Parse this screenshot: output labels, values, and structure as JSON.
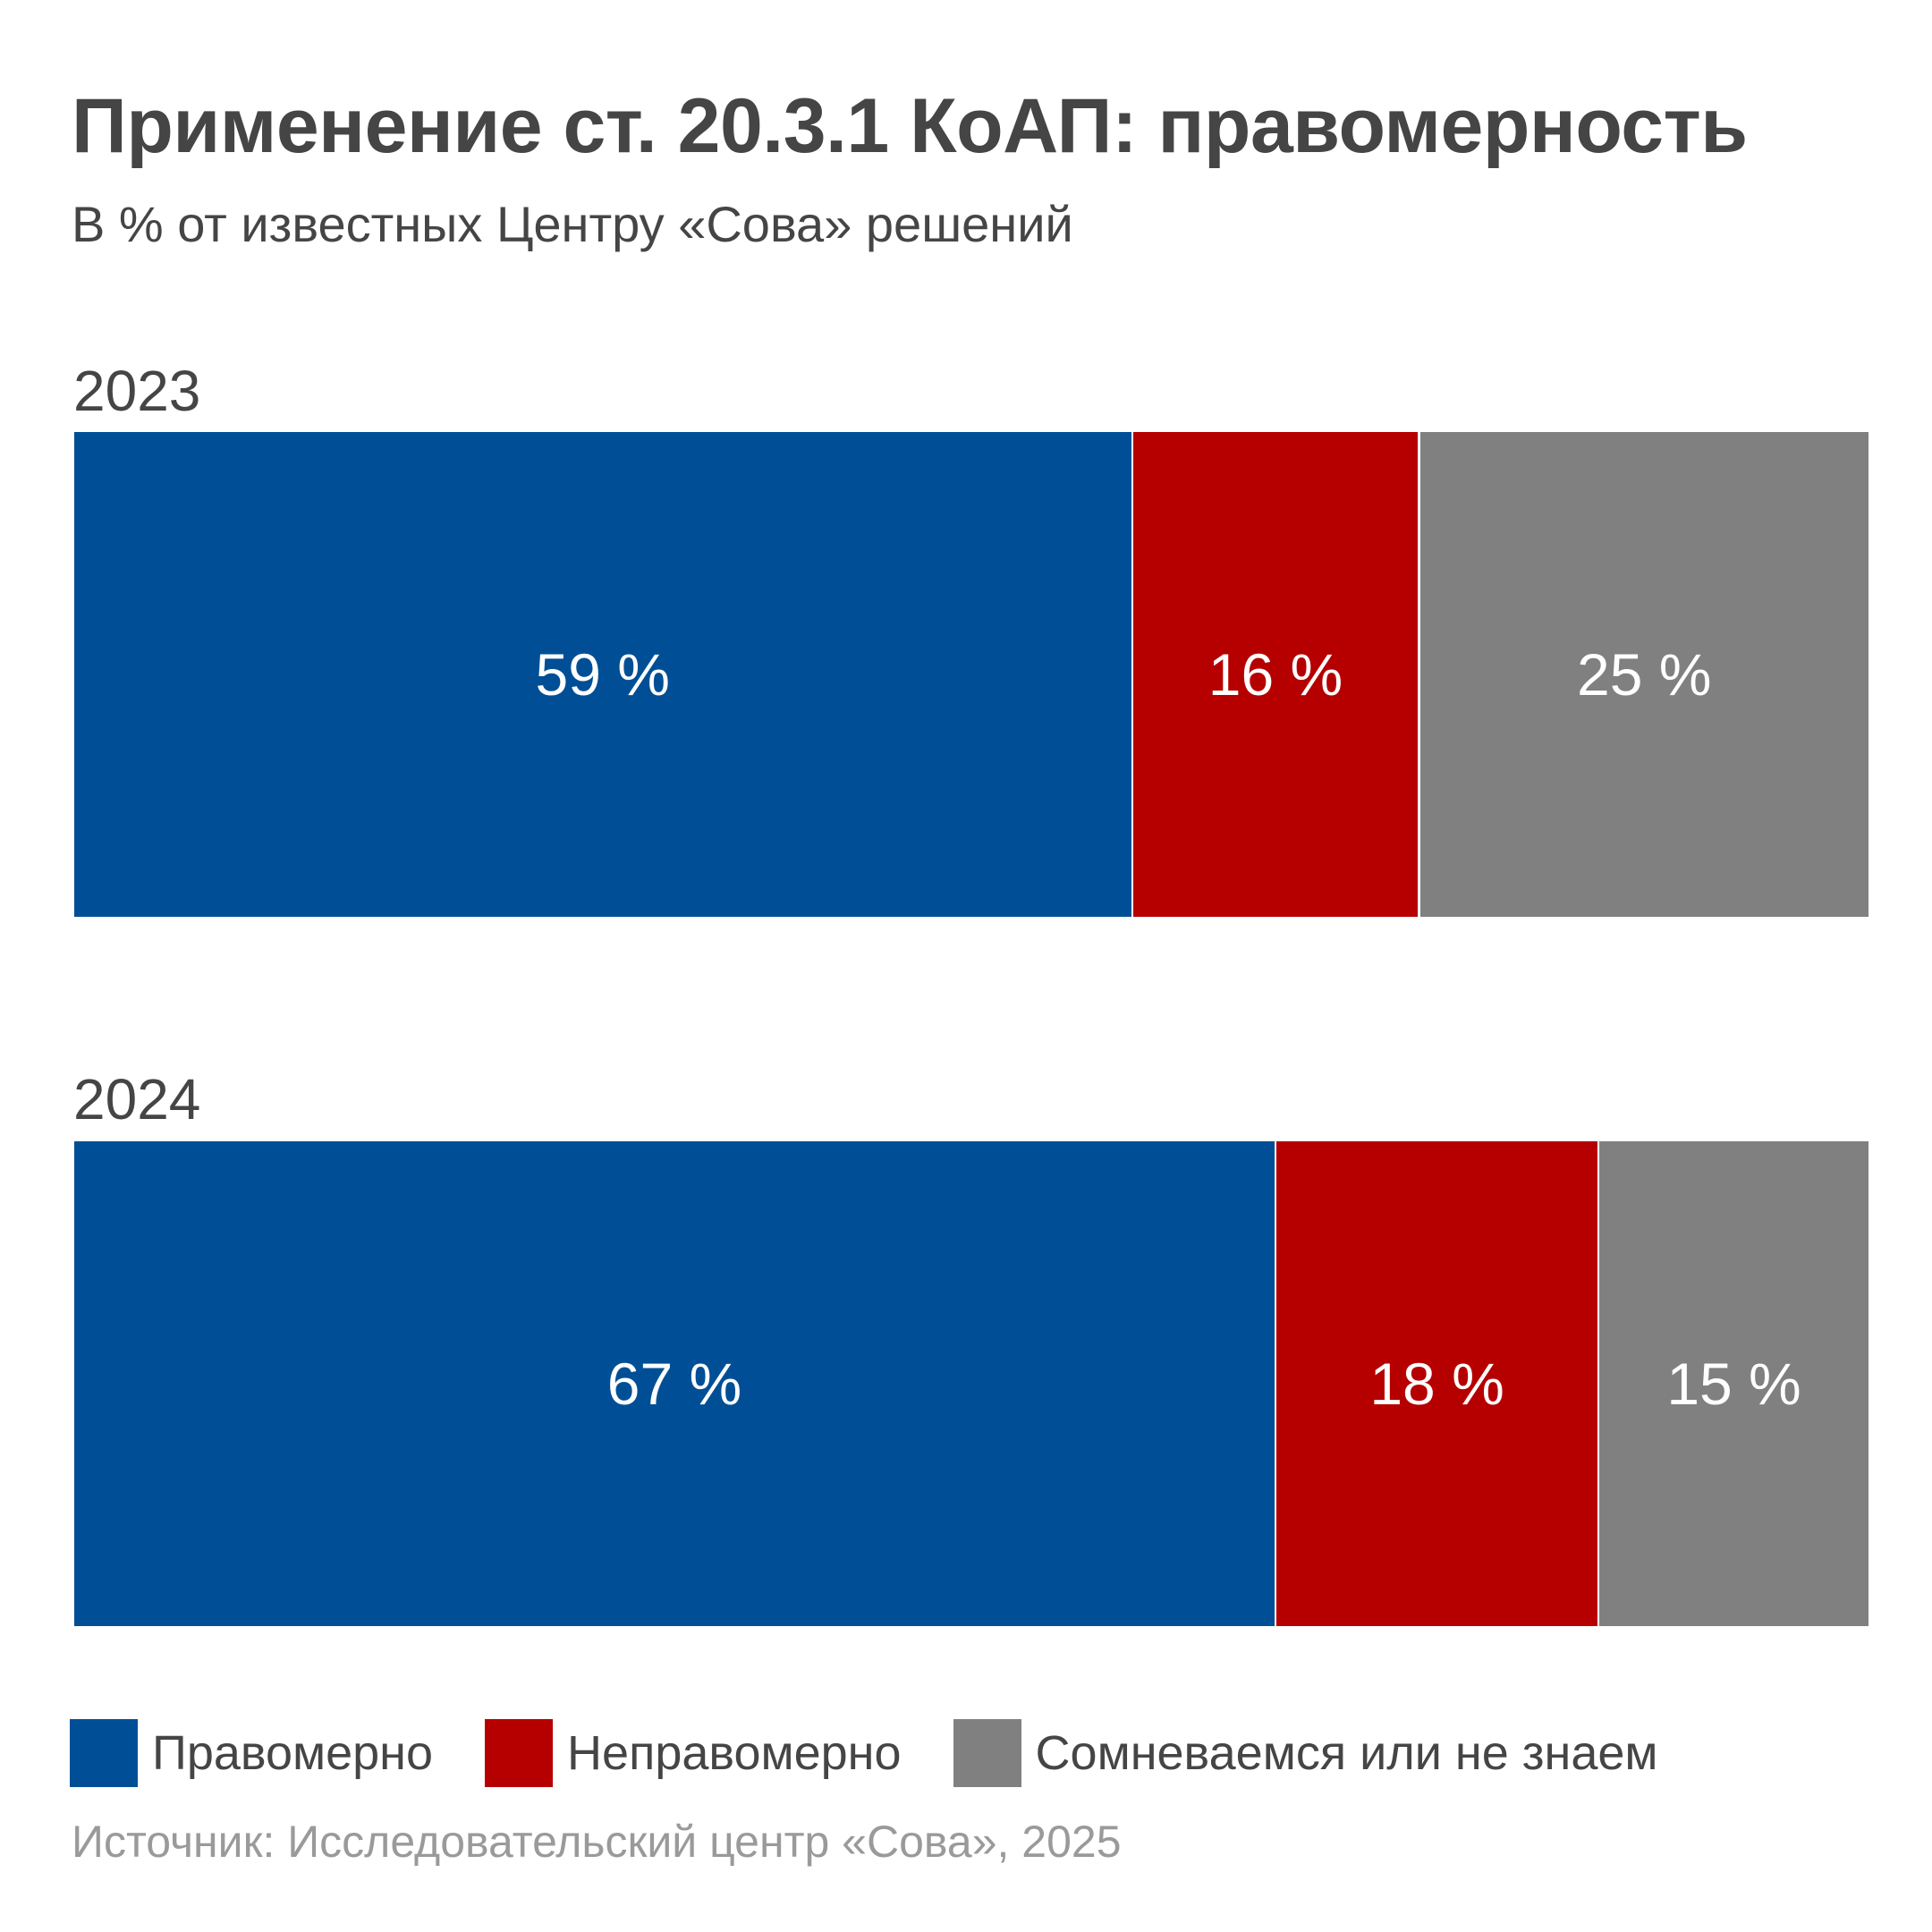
{
  "chart_data": {
    "type": "bar",
    "orientation": "horizontal-stacked",
    "title": "Применение ст. 20.3.1 КоАП: правомерность",
    "subtitle": "В % от известных Центру «Сова» решений",
    "categories": [
      "2023",
      "2024"
    ],
    "series": [
      {
        "name": "Правомерно",
        "color": "#004f96",
        "values": [
          59,
          67
        ],
        "labels": [
          "59 %",
          "67 %"
        ]
      },
      {
        "name": "Неправомерно",
        "color": "#b60000",
        "values": [
          16,
          18
        ],
        "labels": [
          "16 %",
          "18 %"
        ]
      },
      {
        "name": "Сомневаемся или не знаем",
        "color": "#808080",
        "values": [
          25,
          15
        ],
        "labels": [
          "25 %",
          "15 %"
        ]
      }
    ],
    "xlim": [
      0,
      100
    ],
    "grid": false,
    "legend_position": "bottom-left",
    "source": "Источник: Исследовательский центр «Сова», 2025"
  }
}
